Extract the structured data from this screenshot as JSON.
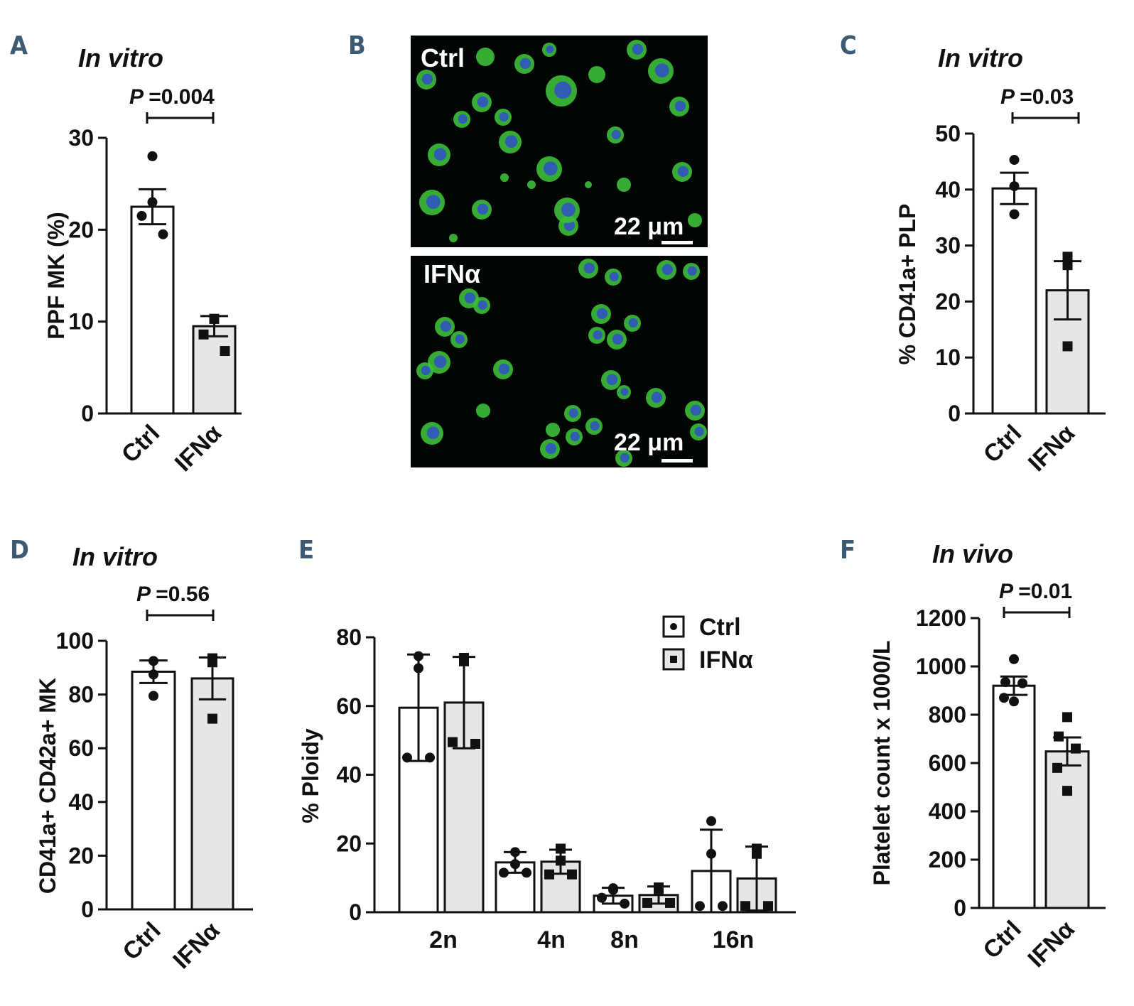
{
  "panels": {
    "A": {
      "letter": "A",
      "condition": "In vitro",
      "pvalue": "P =0.004"
    },
    "B": {
      "letter": "B",
      "top_label": "Ctrl",
      "bottom_label": "IFNα",
      "scale_label": "22 μm"
    },
    "C": {
      "letter": "C",
      "condition": "In vitro",
      "pvalue": "P =0.03"
    },
    "D": {
      "letter": "D",
      "condition": "In vitro",
      "pvalue": "P =0.56"
    },
    "E": {
      "letter": "E"
    },
    "F": {
      "letter": "F",
      "condition": "In vivo",
      "pvalue": "P =0.01"
    }
  },
  "legend": {
    "ctrl": "Ctrl",
    "ifn": "IFNα"
  },
  "colors": {
    "ctrl_fill": "#ffffff",
    "ifn_fill": "#e6e6e6",
    "panel_letter": "#3d5a75",
    "cell_green": "#3dbf3a",
    "nucleus_blue": "#2f4fc8"
  },
  "chart_data": [
    {
      "id": "A",
      "type": "bar",
      "categories": [
        "Ctrl",
        "IFNα"
      ],
      "values": [
        22.5,
        9.5
      ],
      "sem": [
        1.9,
        1.1
      ],
      "points": [
        [
          28,
          23,
          21.5,
          19.5
        ],
        [
          10.3,
          10.3,
          8.6,
          6.8
        ]
      ],
      "ylabel": "PPF MK   (%)",
      "ylim": [
        0,
        30
      ],
      "yticks": [
        0,
        10,
        20,
        30
      ]
    },
    {
      "id": "C",
      "type": "bar",
      "categories": [
        "Ctrl",
        "IFNα"
      ],
      "values": [
        40.2,
        22
      ],
      "sem": [
        2.8,
        5.2
      ],
      "points": [
        [
          45.3,
          40.6,
          35.6
        ],
        [
          28,
          26.5,
          12
        ]
      ],
      "ylabel": "% CD41a+ PLP",
      "ylim": [
        0,
        50
      ],
      "yticks": [
        0,
        10,
        20,
        30,
        40,
        50
      ]
    },
    {
      "id": "D",
      "type": "bar",
      "categories": [
        "Ctrl",
        "IFNα"
      ],
      "values": [
        88.5,
        86
      ],
      "sem": [
        4.2,
        7.8
      ],
      "points": [
        [
          92.5,
          87.5,
          79.5
        ],
        [
          93.5,
          92,
          71
        ]
      ],
      "ylabel": "CD41a+  CD42a+ MK",
      "ylim": [
        0,
        100
      ],
      "yticks": [
        0,
        20,
        40,
        60,
        80,
        100
      ]
    },
    {
      "id": "E",
      "type": "bar",
      "categories": [
        "2n",
        "4n",
        "8n",
        "16n"
      ],
      "series": [
        {
          "name": "Ctrl",
          "values": [
            59.5,
            14.5,
            4.8,
            12
          ],
          "sd": [
            15.5,
            3,
            2.3,
            12
          ],
          "points": [
            [
              74.5,
              71,
              45,
              45
            ],
            [
              17.5,
              14,
              11.5,
              11.5
            ],
            [
              7,
              6.5,
              4.2,
              2.5
            ],
            [
              26.5,
              17,
              1.8,
              1.8
            ]
          ]
        },
        {
          "name": "IFNα",
          "values": [
            61,
            14.7,
            5,
            9.8
          ],
          "sd": [
            13.3,
            3.5,
            2.5,
            9.3
          ],
          "points": [
            [
              74,
              73,
              49.5,
              49
            ],
            [
              18.5,
              15,
              11,
              11
            ],
            [
              7.2,
              6.5,
              2.7,
              2.7
            ],
            [
              18.5,
              17,
              1.8,
              1.8
            ]
          ]
        }
      ],
      "ylabel": "% Ploidy",
      "ylim": [
        0,
        80
      ],
      "yticks": [
        0,
        20,
        40,
        60,
        80
      ]
    },
    {
      "id": "F",
      "type": "bar",
      "categories": [
        "Ctrl",
        "IFNα"
      ],
      "values": [
        920,
        648
      ],
      "sem": [
        38,
        58
      ],
      "points": [
        [
          1030,
          935,
          930,
          870,
          855
        ],
        [
          790,
          710,
          660,
          580,
          485
        ]
      ],
      "ylabel": "Platelet count x 1000/L",
      "ylim": [
        0,
        1200
      ],
      "yticks": [
        0,
        200,
        400,
        600,
        800,
        1000,
        1200
      ]
    }
  ]
}
